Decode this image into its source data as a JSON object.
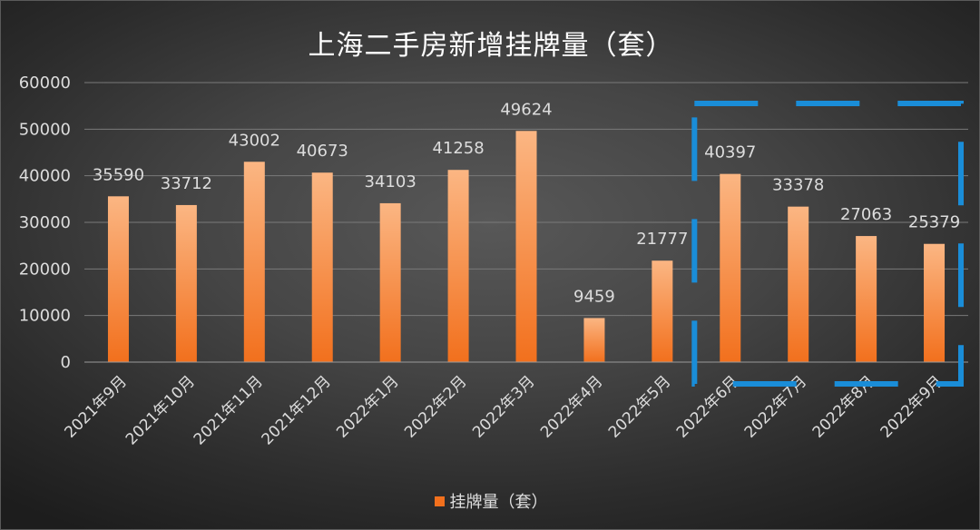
{
  "chart_data": {
    "type": "bar",
    "title": "上海二手房新增挂牌量（套）",
    "xlabel": "",
    "ylabel": "",
    "categories": [
      "2021年9月",
      "2021年10月",
      "2021年11月",
      "2021年12月",
      "2022年1月",
      "2022年2月",
      "2022年3月",
      "2022年4月",
      "2022年5月",
      "2022年6月",
      "2022年7月",
      "2022年8月",
      "2022年9月"
    ],
    "series": [
      {
        "name": "挂牌量（套）",
        "values": [
          35590,
          33712,
          43002,
          40673,
          34103,
          41258,
          49624,
          9459,
          21777,
          40397,
          33378,
          27063,
          25379
        ]
      }
    ],
    "ylim": [
      0,
      60000
    ],
    "yticks": [
      0,
      10000,
      20000,
      30000,
      40000,
      50000,
      60000
    ],
    "grid": true,
    "legend_position": "bottom",
    "data_labels": true,
    "highlight": {
      "style": "dashed-box",
      "categories": [
        "2022年6月",
        "2022年7月",
        "2022年8月",
        "2022年9月"
      ]
    }
  },
  "colors": {
    "bar_light": "#fbb683",
    "bar_dark": "#f2701d",
    "highlight_box": "#1a8dd8",
    "gridline": "#7a7a7a",
    "text": "#dddddd",
    "title": "#ffffff"
  }
}
